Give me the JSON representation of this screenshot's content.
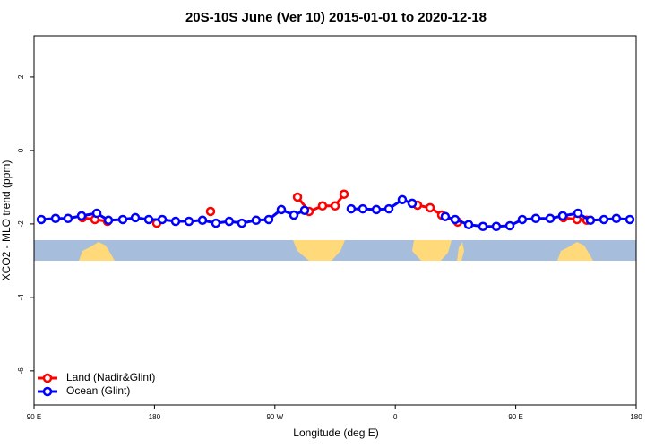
{
  "chart_data": {
    "type": "line",
    "title": "20S-10S June (Ver 10)   2015-01-01 to 2020-12-18",
    "x_label": "Longitude (deg E)",
    "y_label": "XCO2 - MLO trend (ppm)",
    "xlim": [
      90,
      540
    ],
    "xticks": [
      {
        "value": 90,
        "label": "90 E"
      },
      180,
      {
        "value": 270,
        "label": "90 W"
      },
      {
        "value": 360,
        "label": "0"
      },
      {
        "value": 450,
        "label": "90 E"
      },
      {
        "value": 540,
        "label": "180"
      }
    ],
    "ylim": [
      -6.93,
      3.12
    ],
    "yticks": [
      2,
      0,
      -2,
      -4,
      -6
    ],
    "legend": "bottom-left",
    "series": [
      {
        "name": "Land (Nadir&Glint)",
        "color": "#ff0000",
        "x": [
          126.2,
          135.5,
          144.9,
          null,
          181.7,
          null,
          221.9,
          null,
          286.9,
          295.6,
          305.6,
          315.0,
          321.7,
          null,
          376.6,
          386.0,
          394.7,
          406.7,
          null,
          485.7,
          495.8,
          503.1
        ],
        "values": [
          -1.83,
          -1.88,
          -1.93,
          null,
          -1.98,
          null,
          -1.66,
          null,
          -1.27,
          -1.66,
          -1.51,
          -1.51,
          -1.19,
          null,
          -1.49,
          -1.56,
          -1.76,
          -1.95,
          null,
          -1.83,
          -1.88,
          -1.9
        ]
      },
      {
        "name": "Ocean (Glint)",
        "color": "#0000ff",
        "x": [
          95.4,
          106.1,
          115.4,
          125.5,
          136.9,
          145.6,
          156.3,
          165.7,
          175.7,
          185.8,
          195.8,
          205.8,
          215.9,
          225.9,
          235.9,
          245.3,
          256.0,
          265.4,
          274.8,
          284.2,
          292.2,
          null,
          327.0,
          335.7,
          345.8,
          355.2,
          365.2,
          372.6,
          null,
          397.3,
          404.7,
          414.8,
          425.5,
          435.5,
          445.6,
          454.9,
          465.0,
          475.7,
          485.1,
          496.5,
          505.8,
          515.9,
          525.2,
          535.3
        ],
        "values": [
          -1.88,
          -1.85,
          -1.85,
          -1.78,
          -1.71,
          -1.9,
          -1.88,
          -1.83,
          -1.88,
          -1.88,
          -1.93,
          -1.93,
          -1.9,
          -1.98,
          -1.93,
          -1.98,
          -1.9,
          -1.88,
          -1.61,
          -1.76,
          -1.63,
          null,
          -1.59,
          -1.59,
          -1.61,
          -1.59,
          -1.34,
          -1.44,
          null,
          -1.8,
          -1.88,
          -2.02,
          -2.07,
          -2.07,
          -2.05,
          -1.88,
          -1.85,
          -1.85,
          -1.78,
          -1.71,
          -1.9,
          -1.88,
          -1.85,
          -1.88
        ]
      }
    ]
  }
}
